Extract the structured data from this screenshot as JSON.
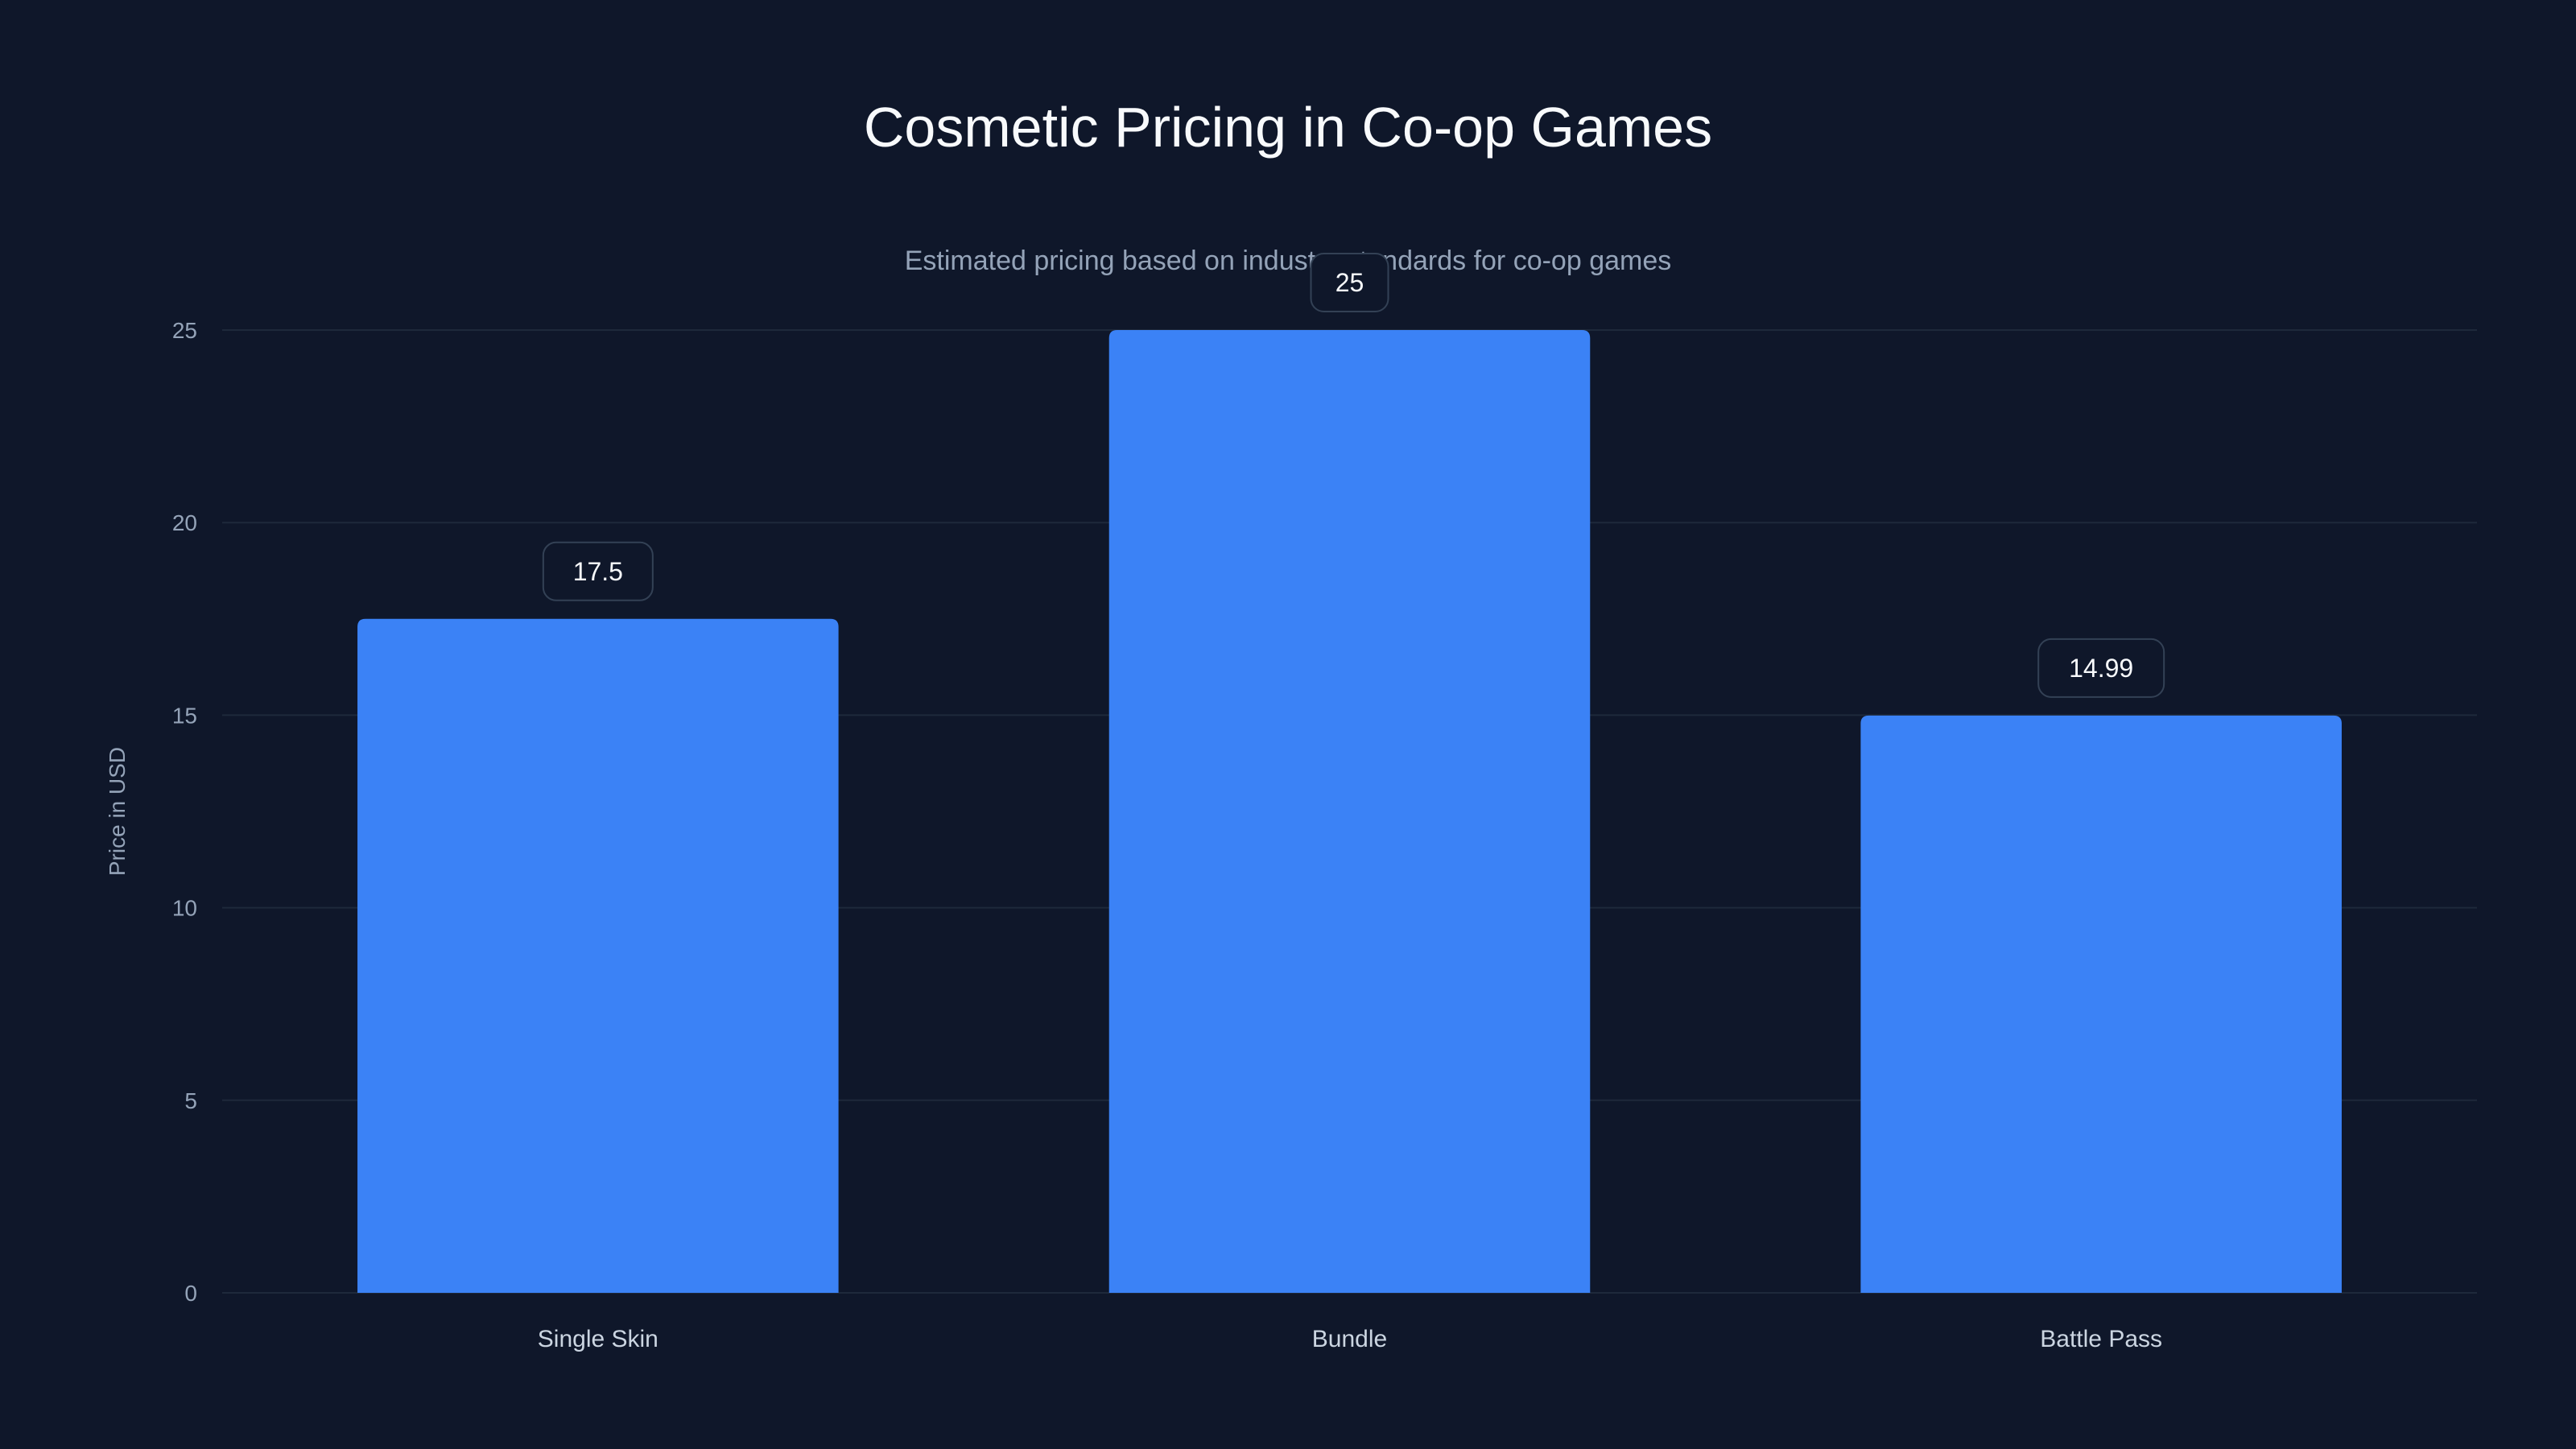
{
  "chart_data": {
    "type": "bar",
    "title": "Cosmetic Pricing in Co-op Games",
    "subtitle": "Estimated pricing based on industry standards for co-op games",
    "xlabel": "",
    "ylabel": "Price in USD",
    "categories": [
      "Single Skin",
      "Bundle",
      "Battle Pass"
    ],
    "values": [
      17.5,
      25,
      14.99
    ],
    "data_labels": [
      "17.5",
      "25",
      "14.99"
    ],
    "ylim": [
      0,
      25
    ],
    "yticks": [
      0,
      5,
      10,
      15,
      20,
      25
    ],
    "grid": true,
    "legend": "none",
    "colors": {
      "bar": "#3b82f6",
      "background": "#0f172a",
      "grid": "#1e293b",
      "label_border": "#334155"
    }
  }
}
